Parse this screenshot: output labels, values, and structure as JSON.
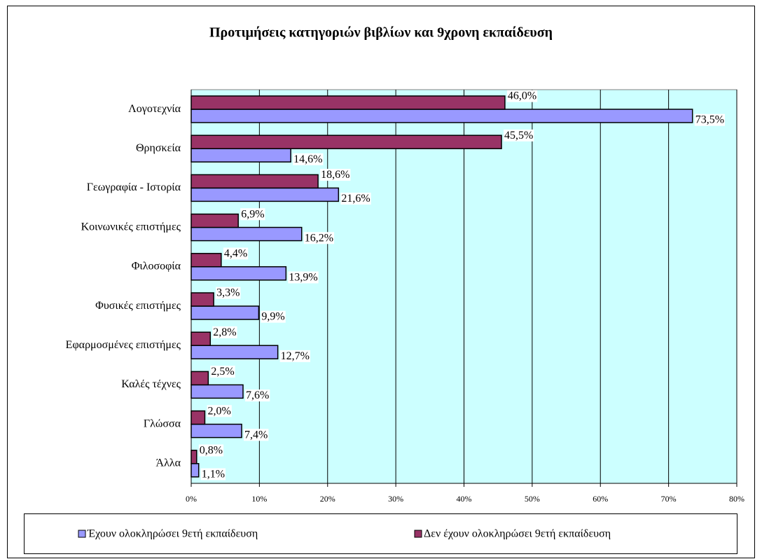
{
  "chart_data": {
    "type": "hbar",
    "title": "Προτιμήσεις κατηγοριών βιβλίων και 9χρονη εκπαίδευση",
    "categories": [
      "Λογοτεχνία",
      "Θρησκεία",
      "Γεωγραφία - Ιστορία",
      "Κοινωνικές επιστήμες",
      "Φιλοσοφία",
      "Φυσικές επιστήμες",
      "Εφαρμοσμένες επιστήμες",
      "Καλές τέχνες",
      "Γλώσσα",
      "Άλλα"
    ],
    "series": [
      {
        "name": "Έχουν ολοκληρώσει 9ετή εκπαίδευση",
        "color": "#9999ff",
        "values": [
          73.5,
          14.6,
          21.6,
          16.2,
          13.9,
          9.9,
          12.7,
          7.6,
          7.4,
          1.1
        ],
        "value_labels": [
          "73,5%",
          "14,6%",
          "21,6%",
          "16,2%",
          "13,9%",
          "9,9%",
          "12,7%",
          "7,6%",
          "7,4%",
          "1,1%"
        ]
      },
      {
        "name": "Δεν έχουν ολοκληρώσει 9ετή εκπαίδευση",
        "color": "#993366",
        "values": [
          46.0,
          45.5,
          18.6,
          6.9,
          4.4,
          3.3,
          2.8,
          2.5,
          2.0,
          0.8
        ],
        "value_labels": [
          "46,0%",
          "45,5%",
          "18,6%",
          "6,9%",
          "4,4%",
          "3,3%",
          "2,8%",
          "2,5%",
          "2,0%",
          "0,8%"
        ]
      }
    ],
    "xlim": [
      0,
      80
    ],
    "xticks": [
      {
        "value": 0,
        "label": "0%"
      },
      {
        "value": 10,
        "label": "10%"
      },
      {
        "value": 20,
        "label": "20%"
      },
      {
        "value": 30,
        "label": "30%"
      },
      {
        "value": 40,
        "label": "40%"
      },
      {
        "value": 50,
        "label": "50%"
      },
      {
        "value": 60,
        "label": "60%"
      },
      {
        "value": 70,
        "label": "70%"
      },
      {
        "value": 80,
        "label": "80%"
      }
    ],
    "grid": true,
    "legend": "bottom",
    "background": "#ccffff"
  }
}
